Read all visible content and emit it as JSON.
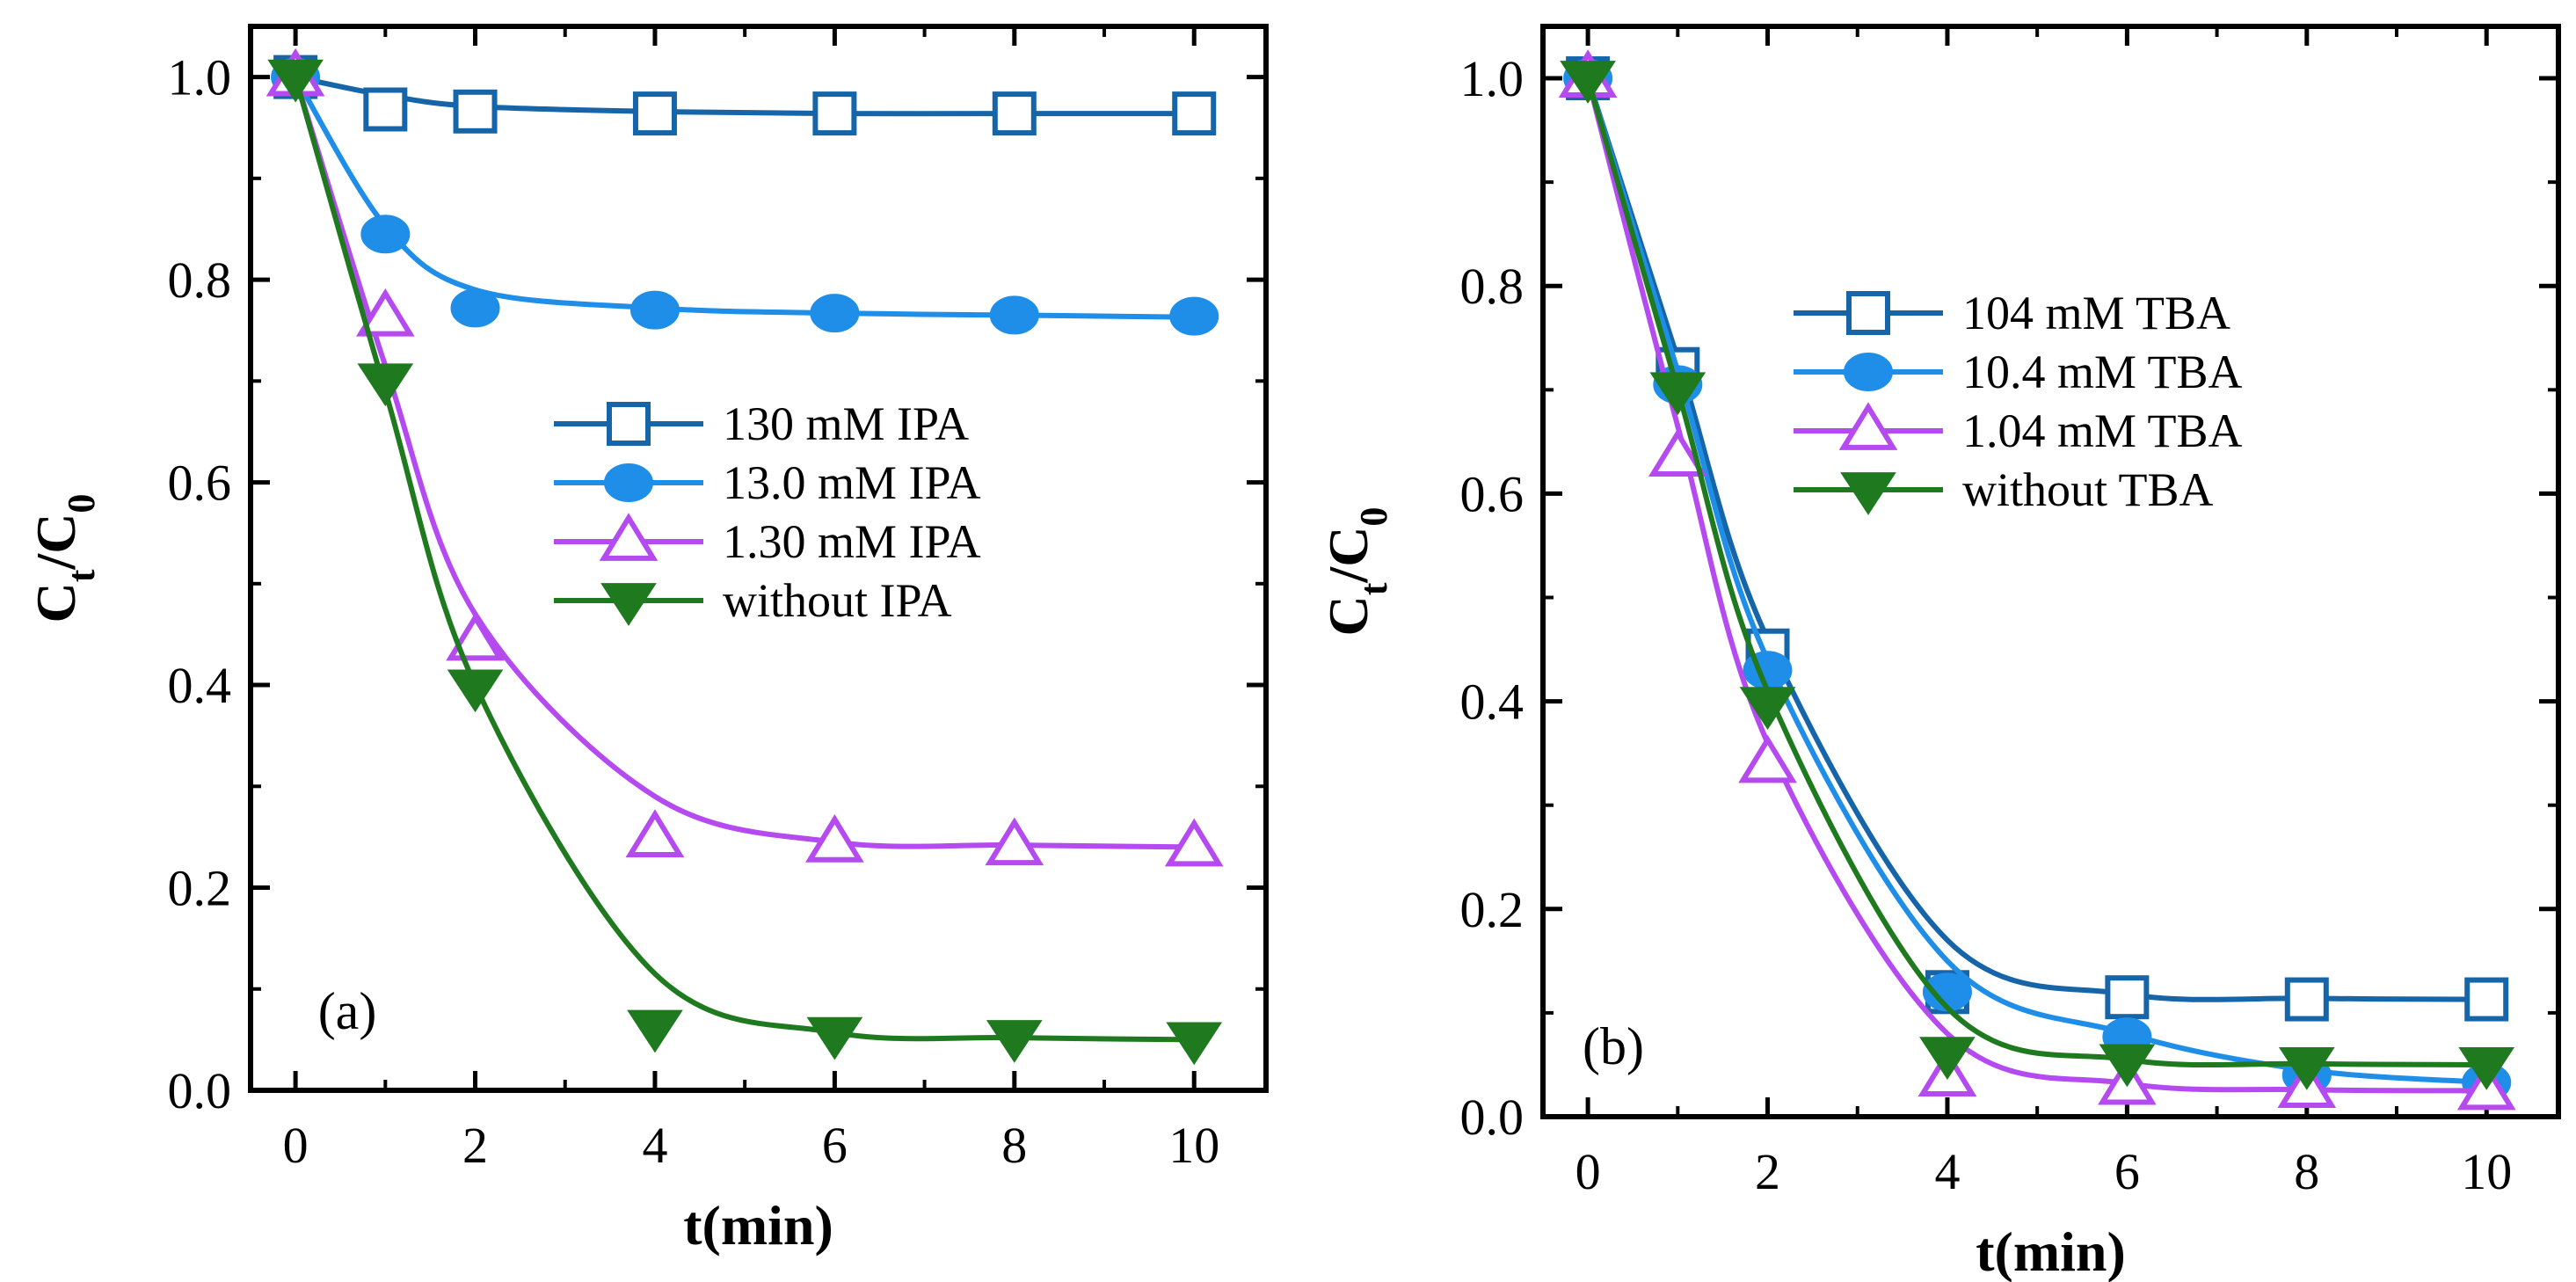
{
  "chart_data": [
    {
      "type": "line",
      "panel_label": "(a)",
      "xlabel": "t(min)",
      "ylabel_main": "C",
      "ylabel_sub1": "t",
      "ylabel_sep": "/C",
      "ylabel_sub2": "0",
      "xlim": [
        -0.5,
        10.8
      ],
      "ylim": [
        0.0,
        1.05
      ],
      "xticks": [
        0,
        2,
        4,
        6,
        8,
        10
      ],
      "xtick_labels": [
        "0",
        "2",
        "4",
        "6",
        "8",
        "10"
      ],
      "yticks": [
        0.0,
        0.2,
        0.4,
        0.6,
        0.8,
        1.0
      ],
      "ytick_labels": [
        "0.0",
        "0.2",
        "0.4",
        "0.6",
        "0.8",
        "1.0"
      ],
      "legend_position": "center-right",
      "series": [
        {
          "name": "130 mM IPA",
          "color": "#1565a8",
          "marker": "open-square",
          "x": [
            0,
            1,
            2,
            4,
            6,
            8,
            10
          ],
          "y": [
            1.0,
            0.968,
            0.966,
            0.964,
            0.964,
            0.964,
            0.964
          ],
          "fit": [
            1.0,
            0.982,
            0.971,
            0.966,
            0.964,
            0.964,
            0.964
          ]
        },
        {
          "name": "13.0 mM IPA",
          "color": "#1e8ee8",
          "marker": "filled-circle",
          "x": [
            0,
            1,
            2,
            4,
            6,
            8,
            10
          ],
          "y": [
            1.0,
            0.845,
            0.772,
            0.77,
            0.767,
            0.765,
            0.764
          ],
          "fit": [
            1.0,
            0.853,
            0.79,
            0.772,
            0.767,
            0.765,
            0.763
          ]
        },
        {
          "name": "1.30 mM IPA",
          "color": "#b44af0",
          "marker": "open-triangle-up",
          "x": [
            0,
            1,
            2,
            4,
            6,
            8,
            10
          ],
          "y": [
            1.0,
            0.763,
            0.443,
            0.249,
            0.244,
            0.241,
            0.24
          ],
          "fit": [
            1.0,
            0.715,
            0.47,
            0.29,
            0.245,
            0.242,
            0.24
          ]
        },
        {
          "name": "without IPA",
          "color": "#1f7a1f",
          "marker": "filled-triangle-down",
          "x": [
            0,
            1,
            2,
            4,
            6,
            8,
            10
          ],
          "y": [
            1.0,
            0.7,
            0.398,
            0.062,
            0.055,
            0.052,
            0.05
          ],
          "fit": [
            1.0,
            0.69,
            0.4,
            0.115,
            0.057,
            0.052,
            0.05
          ]
        }
      ]
    },
    {
      "type": "line",
      "panel_label": "(b)",
      "xlabel": "t(min)",
      "ylabel_main": "C",
      "ylabel_sub1": "t",
      "ylabel_sep": "/C",
      "ylabel_sub2": "0",
      "xlim": [
        -0.5,
        10.8
      ],
      "ylim": [
        0.0,
        1.05
      ],
      "xticks": [
        0,
        2,
        4,
        6,
        8,
        10
      ],
      "xtick_labels": [
        "0",
        "2",
        "4",
        "6",
        "8",
        "10"
      ],
      "yticks": [
        0.0,
        0.2,
        0.4,
        0.6,
        0.8,
        1.0
      ],
      "ytick_labels": [
        "0.0",
        "0.2",
        "0.4",
        "0.6",
        "0.8",
        "1.0"
      ],
      "legend_position": "top-right",
      "series": [
        {
          "name": "104 mM TBA",
          "color": "#1565a8",
          "marker": "open-square",
          "x": [
            0,
            1,
            2,
            4,
            6,
            8,
            10
          ],
          "y": [
            1.0,
            0.72,
            0.449,
            0.12,
            0.115,
            0.113,
            0.113
          ],
          "fit": [
            1.0,
            0.73,
            0.46,
            0.17,
            0.118,
            0.114,
            0.113
          ]
        },
        {
          "name": "10.4 mM TBA",
          "color": "#1e8ee8",
          "marker": "filled-circle",
          "x": [
            0,
            1,
            2,
            4,
            6,
            8,
            10
          ],
          "y": [
            1.0,
            0.705,
            0.43,
            0.12,
            0.077,
            0.04,
            0.033
          ],
          "fit": [
            1.0,
            0.718,
            0.44,
            0.15,
            0.08,
            0.045,
            0.033
          ]
        },
        {
          "name": "1.04 mM TBA",
          "color": "#b44af0",
          "marker": "open-triangle-up",
          "x": [
            0,
            1,
            2,
            4,
            6,
            8,
            10
          ],
          "y": [
            1.0,
            0.635,
            0.34,
            0.038,
            0.03,
            0.027,
            0.025
          ],
          "fit": [
            1.0,
            0.665,
            0.36,
            0.08,
            0.032,
            0.026,
            0.025
          ]
        },
        {
          "name": "without TBA",
          "color": "#1f7a1f",
          "marker": "filled-triangle-down",
          "x": [
            0,
            1,
            2,
            4,
            6,
            8,
            10
          ],
          "y": [
            1.0,
            0.7,
            0.397,
            0.06,
            0.053,
            0.05,
            0.05
          ],
          "fit": [
            1.0,
            0.7,
            0.41,
            0.105,
            0.055,
            0.051,
            0.05
          ]
        }
      ]
    }
  ]
}
